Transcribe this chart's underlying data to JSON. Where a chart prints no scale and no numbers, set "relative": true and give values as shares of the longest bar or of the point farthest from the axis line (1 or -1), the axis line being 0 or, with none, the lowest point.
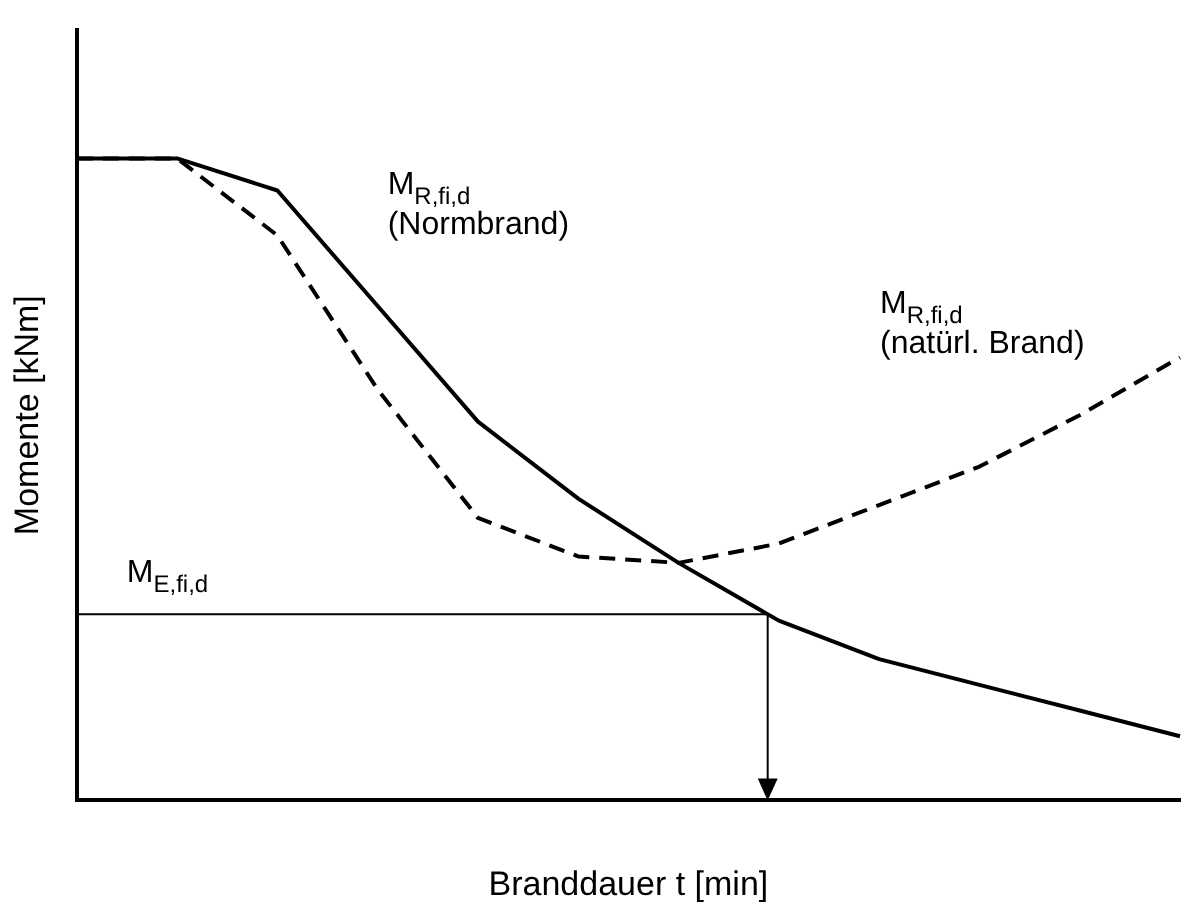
{
  "chart_data": {
    "type": "line",
    "relative": true,
    "xlabel": "Branddauer t [min]",
    "ylabel": "Momente [kNm]",
    "categories": [
      null,
      null,
      null,
      null,
      null,
      null,
      null,
      null,
      null,
      null,
      null,
      null
    ],
    "series": [
      {
        "name": "M$_{R,fi,d}$ (Normbrand)",
        "color": "#000000",
        "line_style": "solid",
        "values": [
          1,
          1,
          0.95,
          0.77,
          0.59,
          0.47,
          0.37,
          0.28,
          0.22,
          0.18,
          0.14,
          0.1
        ]
      },
      {
        "name": "M$_{R,fi,d}$ (natürl. Brand)",
        "color": "#000000",
        "line_style": "dashed",
        "values": [
          1,
          1,
          0.88,
          0.64,
          0.44,
          0.38,
          0.37,
          0.4,
          0.46,
          0.52,
          0.6,
          0.69
        ]
      }
    ],
    "ref_lines": [
      {
        "axis": "y",
        "value": 0.29,
        "label": "M$_{E,fi,d}$",
        "color": "#000000"
      }
    ],
    "legend": false,
    "marker": "none",
    "grid": false
  }
}
